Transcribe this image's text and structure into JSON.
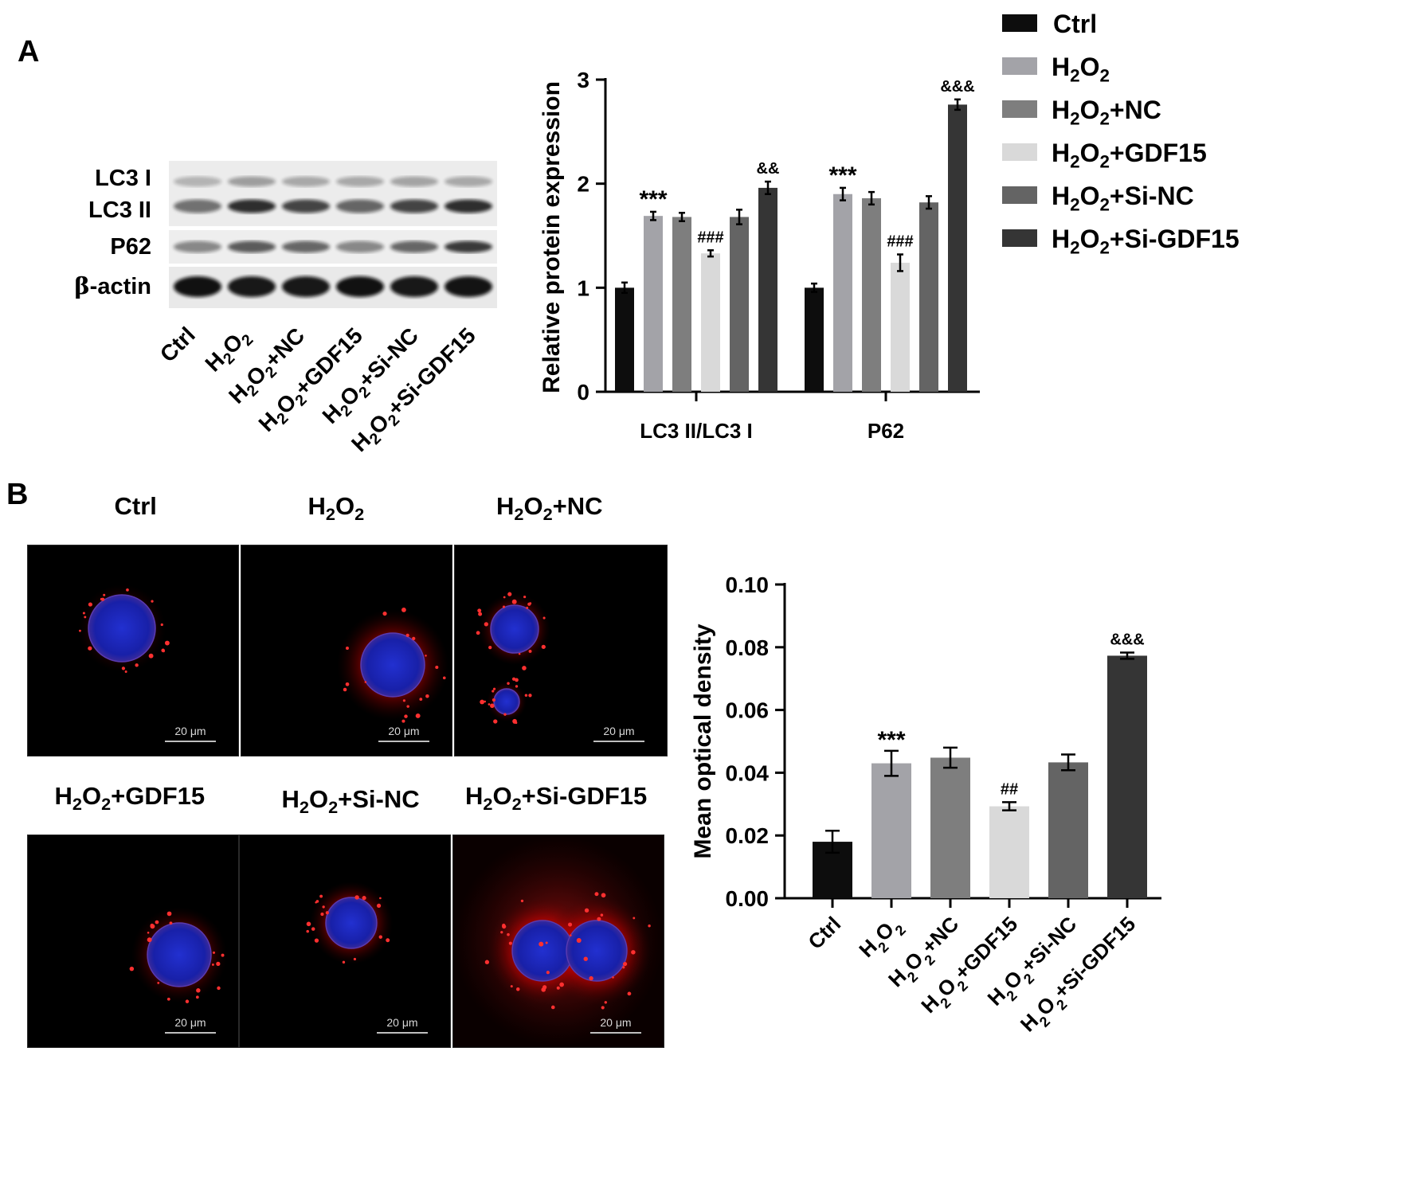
{
  "panel_a": {
    "letter": "A",
    "blot": {
      "rows": [
        {
          "label": "LC3 I",
          "greek": ""
        },
        {
          "label": "LC3 II",
          "greek": ""
        },
        {
          "label": "P62",
          "greek": ""
        },
        {
          "label": "-actin",
          "greek": "β"
        }
      ],
      "lanes": [
        {
          "name": "Ctrl",
          "suffix": ""
        },
        {
          "name": "H2O2",
          "suffix": ""
        },
        {
          "name": "H2O2",
          "suffix": "+NC"
        },
        {
          "name": "H2O2",
          "suffix": "+GDF15"
        },
        {
          "name": "H2O2",
          "suffix": "+Si-NC"
        },
        {
          "name": "H2O2",
          "suffix": "+Si-GDF15"
        }
      ]
    }
  },
  "panel_b": {
    "letter": "B",
    "images": [
      {
        "prefix": "Ctrl",
        "h2o2": false,
        "suffix": "",
        "scale": "20 μm"
      },
      {
        "prefix": "",
        "h2o2": true,
        "suffix": "",
        "scale": "20 μm"
      },
      {
        "prefix": "",
        "h2o2": true,
        "suffix": "+NC",
        "scale": "20 μm"
      },
      {
        "prefix": "",
        "h2o2": true,
        "suffix": "+GDF15",
        "scale": "20 μm"
      },
      {
        "prefix": "",
        "h2o2": true,
        "suffix": "+Si-NC",
        "scale": "20 μm"
      },
      {
        "prefix": "",
        "h2o2": true,
        "suffix": "+Si-GDF15",
        "scale": "20 μm"
      }
    ]
  },
  "legend": [
    {
      "label": "Ctrl",
      "h2o2": false,
      "suffix": "",
      "color": "#0d0d0d"
    },
    {
      "label": "",
      "h2o2": true,
      "suffix": "",
      "color": "#a3a3a8"
    },
    {
      "label": "",
      "h2o2": true,
      "suffix": "+NC",
      "color": "#7e7e7e"
    },
    {
      "label": "",
      "h2o2": true,
      "suffix": "+GDF15",
      "color": "#d9d9d9"
    },
    {
      "label": "",
      "h2o2": true,
      "suffix": "+Si-NC",
      "color": "#646464"
    },
    {
      "label": "",
      "h2o2": true,
      "suffix": "+Si-GDF15",
      "color": "#353535"
    }
  ],
  "chart_data": [
    {
      "type": "bar",
      "ylabel": "Relative protein expression",
      "ylim": [
        0,
        3
      ],
      "yticks": [
        "0",
        "1",
        "2",
        "3"
      ],
      "categories": [
        "LC3 II/LC3 I",
        "P62"
      ],
      "series": [
        {
          "name": "Ctrl",
          "values": [
            1.0,
            1.0
          ],
          "errors": [
            0.05,
            0.04
          ],
          "annotations": [
            "",
            ""
          ]
        },
        {
          "name": "H2O2",
          "values": [
            1.69,
            1.9
          ],
          "errors": [
            0.04,
            0.06
          ],
          "annotations": [
            "***",
            "***"
          ]
        },
        {
          "name": "H2O2+NC",
          "values": [
            1.68,
            1.86
          ],
          "errors": [
            0.04,
            0.06
          ],
          "annotations": [
            "",
            ""
          ]
        },
        {
          "name": "H2O2+GDF15",
          "values": [
            1.33,
            1.24
          ],
          "errors": [
            0.03,
            0.08
          ],
          "annotations": [
            "###",
            "###"
          ]
        },
        {
          "name": "H2O2+Si-NC",
          "values": [
            1.68,
            1.82
          ],
          "errors": [
            0.07,
            0.06
          ],
          "annotations": [
            "",
            ""
          ]
        },
        {
          "name": "H2O2+Si-GDF15",
          "values": [
            1.96,
            2.76
          ],
          "errors": [
            0.06,
            0.05
          ],
          "annotations": [
            "&&",
            "&&&"
          ]
        }
      ]
    },
    {
      "type": "bar",
      "ylabel": "Mean optical density",
      "ylim": [
        0,
        0.1
      ],
      "yticks": [
        "0.00",
        "0.02",
        "0.04",
        "0.06",
        "0.08",
        "0.10"
      ],
      "categories": [
        "Ctrl",
        "H2O2",
        "H2O2+NC",
        "H2O2+GDF15",
        "H2O2+Si-NC",
        "H2O2+Si-GDF15"
      ],
      "values": [
        0.018,
        0.043,
        0.0448,
        0.0293,
        0.0433,
        0.0773
      ],
      "errors": [
        0.0035,
        0.004,
        0.0032,
        0.0013,
        0.0025,
        0.001
      ],
      "annotations": [
        "",
        "***",
        "",
        "##",
        "",
        "&&&"
      ]
    }
  ]
}
